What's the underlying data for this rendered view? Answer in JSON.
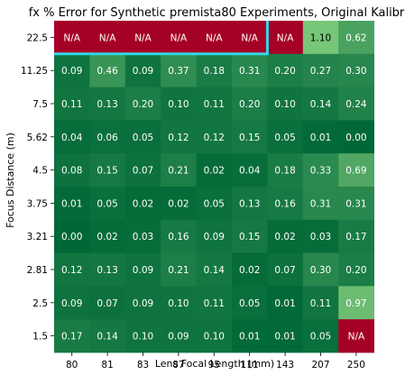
{
  "chart_data": {
    "type": "heatmap",
    "title": "fx % Error for Synthetic premista80 Experiments, Original Kalibr",
    "xlabel": "Lens Focal Length (mm)",
    "ylabel": "Focus Distance (m)",
    "x_categories": [
      "80",
      "81",
      "83",
      "87",
      "95",
      "111",
      "143",
      "207",
      "250"
    ],
    "y_categories": [
      "22.5",
      "11.25",
      "7.5",
      "5.62",
      "4.5",
      "3.75",
      "3.21",
      "2.81",
      "2.5",
      "1.5"
    ],
    "values": [
      [
        null,
        null,
        null,
        null,
        null,
        null,
        null,
        1.1,
        0.62
      ],
      [
        0.09,
        0.46,
        0.09,
        0.37,
        0.18,
        0.31,
        0.2,
        0.27,
        0.3
      ],
      [
        0.11,
        0.13,
        0.2,
        0.1,
        0.11,
        0.2,
        0.1,
        0.14,
        0.24
      ],
      [
        0.04,
        0.06,
        0.05,
        0.12,
        0.12,
        0.15,
        0.05,
        0.01,
        0.0
      ],
      [
        0.08,
        0.15,
        0.07,
        0.21,
        0.02,
        0.04,
        0.18,
        0.33,
        0.69
      ],
      [
        0.01,
        0.05,
        0.02,
        0.02,
        0.05,
        0.13,
        0.16,
        0.31,
        0.31
      ],
      [
        0.0,
        0.02,
        0.03,
        0.16,
        0.09,
        0.15,
        0.02,
        0.03,
        0.17
      ],
      [
        0.12,
        0.13,
        0.09,
        0.21,
        0.14,
        0.02,
        0.07,
        0.3,
        0.2
      ],
      [
        0.09,
        0.07,
        0.09,
        0.1,
        0.11,
        0.05,
        0.01,
        0.11,
        0.97
      ],
      [
        0.17,
        0.14,
        0.1,
        0.09,
        0.1,
        0.01,
        0.01,
        0.05,
        null
      ]
    ],
    "missing_label": "N/A",
    "colors": {
      "missing": "#a50026",
      "low": "#006837",
      "high": "#78c679",
      "highlight_border": "#33d6e6",
      "text": "#ffffff",
      "text_on_light": "#000000"
    },
    "highlight_region": {
      "rows": [
        0,
        0
      ],
      "cols": [
        0,
        5
      ]
    }
  }
}
